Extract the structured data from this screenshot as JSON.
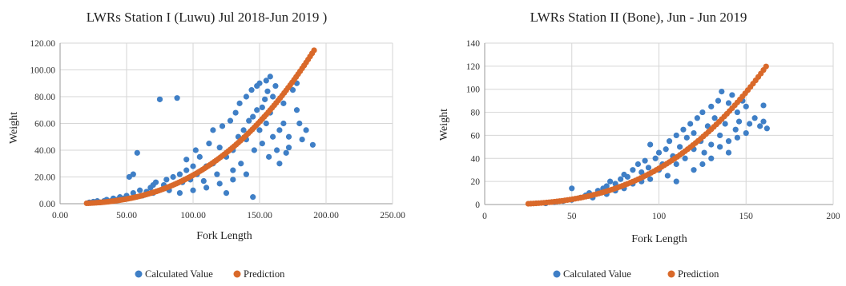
{
  "colors": {
    "calculated": "#3F7FC6",
    "prediction": "#D9692A",
    "grid": "#d6d6d6"
  },
  "chart_data": [
    {
      "type": "scatter",
      "title": "LWRs Station I (Luwu) Jul 2018-Jun 2019 )",
      "xlabel": "Fork Length",
      "ylabel": "Weight",
      "xlim": [
        0,
        250
      ],
      "ylim": [
        0,
        120
      ],
      "x_ticks": [
        "0.00",
        "50.00",
        "100.00",
        "150.00",
        "200.00",
        "250.00"
      ],
      "y_ticks": [
        "0.00",
        "20.00",
        "40.00",
        "60.00",
        "80.00",
        "100.00",
        "120.00"
      ],
      "grid": true,
      "legend": "bottom",
      "series": [
        {
          "name": "Calculated Value",
          "color": "#3F7FC6",
          "points": [
            [
              22,
              1
            ],
            [
              25,
              1.5
            ],
            [
              28,
              2
            ],
            [
              30,
              1
            ],
            [
              33,
              2
            ],
            [
              35,
              3
            ],
            [
              38,
              2
            ],
            [
              40,
              4
            ],
            [
              42,
              3
            ],
            [
              45,
              5
            ],
            [
              48,
              4
            ],
            [
              50,
              6
            ],
            [
              52,
              20
            ],
            [
              55,
              22
            ],
            [
              55,
              8
            ],
            [
              58,
              38
            ],
            [
              60,
              10
            ],
            [
              62,
              6
            ],
            [
              65,
              9
            ],
            [
              68,
              12
            ],
            [
              70,
              14
            ],
            [
              70,
              8
            ],
            [
              72,
              16
            ],
            [
              75,
              78
            ],
            [
              78,
              14
            ],
            [
              80,
              18
            ],
            [
              82,
              10
            ],
            [
              85,
              20
            ],
            [
              88,
              79
            ],
            [
              90,
              22
            ],
            [
              92,
              16
            ],
            [
              95,
              25
            ],
            [
              95,
              33
            ],
            [
              98,
              18
            ],
            [
              100,
              28
            ],
            [
              102,
              40
            ],
            [
              103,
              22
            ],
            [
              105,
              35
            ],
            [
              108,
              17
            ],
            [
              110,
              28
            ],
            [
              112,
              45
            ],
            [
              115,
              30
            ],
            [
              115,
              55
            ],
            [
              118,
              22
            ],
            [
              120,
              42
            ],
            [
              122,
              58
            ],
            [
              125,
              35
            ],
            [
              125,
              8
            ],
            [
              128,
              62
            ],
            [
              130,
              40
            ],
            [
              130,
              25
            ],
            [
              132,
              68
            ],
            [
              134,
              50
            ],
            [
              135,
              75
            ],
            [
              136,
              30
            ],
            [
              138,
              55
            ],
            [
              140,
              48
            ],
            [
              140,
              80
            ],
            [
              142,
              62
            ],
            [
              144,
              85
            ],
            [
              145,
              5
            ],
            [
              145,
              65
            ],
            [
              146,
              40
            ],
            [
              148,
              70
            ],
            [
              148,
              88
            ],
            [
              150,
              55
            ],
            [
              150,
              90
            ],
            [
              152,
              72
            ],
            [
              152,
              45
            ],
            [
              154,
              78
            ],
            [
              155,
              92
            ],
            [
              155,
              60
            ],
            [
              156,
              84
            ],
            [
              157,
              35
            ],
            [
              158,
              68
            ],
            [
              158,
              95
            ],
            [
              160,
              80
            ],
            [
              160,
              50
            ],
            [
              162,
              88
            ],
            [
              163,
              40
            ],
            [
              165,
              55
            ],
            [
              165,
              30
            ],
            [
              168,
              60
            ],
            [
              170,
              38
            ],
            [
              172,
              42
            ],
            [
              175,
              85
            ],
            [
              178,
              90
            ],
            [
              180,
              60
            ],
            [
              182,
              48
            ],
            [
              185,
              55
            ],
            [
              190,
              44
            ],
            [
              178,
              70
            ],
            [
              168,
              75
            ],
            [
              172,
              50
            ],
            [
              120,
              15
            ],
            [
              110,
              12
            ],
            [
              100,
              10
            ],
            [
              90,
              8
            ],
            [
              130,
              18
            ],
            [
              140,
              22
            ]
          ]
        },
        {
          "name": "Prediction",
          "color": "#D9692A",
          "curve": {
            "a": 0.0001345,
            "b": 2.6,
            "x_min": 20,
            "x_max": 191
          }
        }
      ]
    },
    {
      "type": "scatter",
      "title": "LWRs Station II (Bone), Jun - Jun 2019",
      "xlabel": "Fork Length",
      "ylabel": "Weight",
      "xlim": [
        0,
        200
      ],
      "ylim": [
        0,
        140
      ],
      "x_ticks": [
        "0",
        "50",
        "100",
        "150",
        "200"
      ],
      "y_ticks": [
        "0",
        "20",
        "40",
        "60",
        "80",
        "100",
        "120",
        "140"
      ],
      "grid": true,
      "legend": "bottom",
      "series": [
        {
          "name": "Calculated Value",
          "color": "#3F7FC6",
          "points": [
            [
              35,
              1
            ],
            [
              40,
              2
            ],
            [
              45,
              3
            ],
            [
              50,
              4
            ],
            [
              50,
              14
            ],
            [
              55,
              6
            ],
            [
              58,
              8
            ],
            [
              60,
              10
            ],
            [
              62,
              6
            ],
            [
              65,
              12
            ],
            [
              68,
              14
            ],
            [
              70,
              16
            ],
            [
              70,
              9
            ],
            [
              72,
              20
            ],
            [
              75,
              18
            ],
            [
              75,
              12
            ],
            [
              78,
              22
            ],
            [
              80,
              26
            ],
            [
              80,
              14
            ],
            [
              82,
              24
            ],
            [
              85,
              30
            ],
            [
              85,
              18
            ],
            [
              88,
              35
            ],
            [
              90,
              28
            ],
            [
              90,
              20
            ],
            [
              92,
              38
            ],
            [
              94,
              32
            ],
            [
              95,
              52
            ],
            [
              95,
              22
            ],
            [
              98,
              40
            ],
            [
              100,
              45
            ],
            [
              100,
              30
            ],
            [
              102,
              35
            ],
            [
              104,
              48
            ],
            [
              105,
              25
            ],
            [
              106,
              55
            ],
            [
              108,
              42
            ],
            [
              110,
              60
            ],
            [
              110,
              35
            ],
            [
              112,
              50
            ],
            [
              114,
              65
            ],
            [
              115,
              40
            ],
            [
              116,
              58
            ],
            [
              118,
              70
            ],
            [
              120,
              48
            ],
            [
              120,
              62
            ],
            [
              122,
              75
            ],
            [
              124,
              55
            ],
            [
              125,
              80
            ],
            [
              126,
              45
            ],
            [
              128,
              68
            ],
            [
              130,
              85
            ],
            [
              130,
              52
            ],
            [
              132,
              75
            ],
            [
              134,
              90
            ],
            [
              135,
              60
            ],
            [
              136,
              98
            ],
            [
              138,
              70
            ],
            [
              140,
              88
            ],
            [
              140,
              55
            ],
            [
              142,
              95
            ],
            [
              144,
              65
            ],
            [
              145,
              80
            ],
            [
              146,
              72
            ],
            [
              148,
              90
            ],
            [
              150,
              62
            ],
            [
              150,
              85
            ],
            [
              152,
              70
            ],
            [
              155,
              75
            ],
            [
              158,
              68
            ],
            [
              160,
              86
            ],
            [
              160,
              72
            ],
            [
              162,
              66
            ],
            [
              110,
              20
            ],
            [
              120,
              30
            ],
            [
              130,
              40
            ],
            [
              140,
              45
            ],
            [
              125,
              35
            ],
            [
              135,
              50
            ],
            [
              145,
              58
            ]
          ]
        },
        {
          "name": "Prediction",
          "color": "#D9692A",
          "curve": {
            "a": 7.86e-05,
            "b": 2.8,
            "x_min": 25,
            "x_max": 162
          }
        }
      ]
    }
  ]
}
